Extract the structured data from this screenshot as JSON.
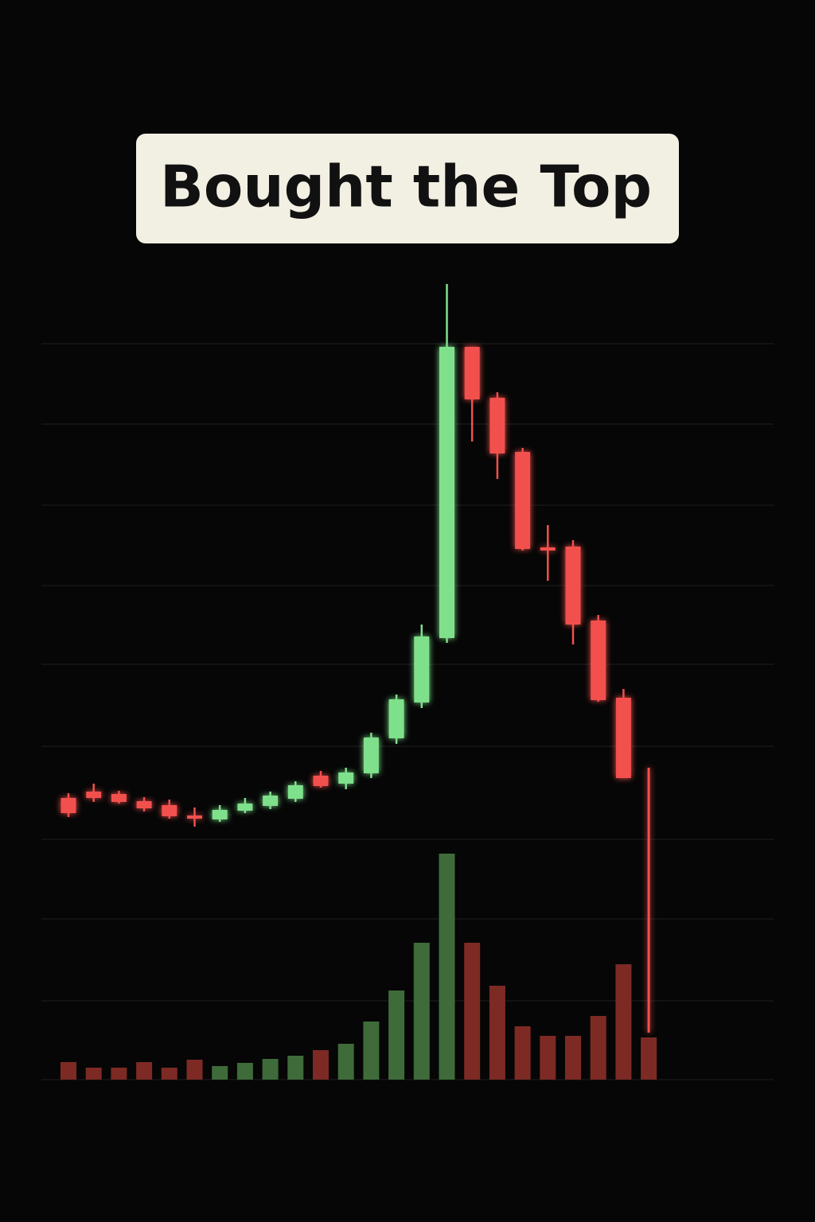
{
  "chart_data": {
    "type": "candlestick",
    "title": "Bought the Top",
    "up_color": "#7fe08b",
    "down_color": "#f2504d",
    "volume_up_color": "#3e6b39",
    "volume_down_color": "#7d2a25",
    "ylim": [
      0,
      100
    ],
    "volume_ylim": [
      0,
      100
    ],
    "open": [
      35.4,
      36.2,
      35.9,
      35.0,
      34.5,
      33.2,
      32.7,
      33.8,
      34.4,
      35.3,
      38.2,
      37.2,
      38.5,
      42.9,
      47.4,
      55.5,
      92.1,
      85.7,
      78.9,
      66.9,
      67.0,
      57.7,
      48.0,
      39.2
    ],
    "high": [
      36.0,
      37.2,
      36.3,
      35.5,
      35.2,
      34.2,
      34.5,
      35.4,
      36.2,
      37.5,
      38.8,
      39.2,
      43.6,
      48.4,
      57.2,
      100.0,
      92.1,
      86.4,
      79.4,
      69.7,
      67.8,
      58.4,
      49.1,
      39.2
    ],
    "low": [
      33.0,
      34.9,
      34.7,
      33.7,
      32.8,
      31.8,
      32.4,
      33.5,
      34.0,
      34.9,
      36.7,
      36.5,
      37.9,
      42.2,
      46.7,
      54.9,
      80.2,
      75.5,
      66.5,
      62.7,
      54.7,
      47.5,
      37.9,
      5.9
    ],
    "close": [
      33.5,
      35.4,
      34.9,
      34.1,
      33.1,
      32.8,
      33.9,
      34.7,
      35.7,
      37.0,
      36.9,
      38.6,
      43.0,
      47.8,
      55.7,
      92.1,
      85.5,
      78.7,
      66.7,
      66.5,
      57.2,
      47.7,
      37.9,
      5.9
    ],
    "volume": [
      2.2,
      1.5,
      1.5,
      2.2,
      1.5,
      2.5,
      1.7,
      2.1,
      2.6,
      3.0,
      3.7,
      4.5,
      7.3,
      11.2,
      17.2,
      28.4,
      17.2,
      11.8,
      6.7,
      5.5,
      5.5,
      8.0,
      14.5,
      5.3
    ]
  }
}
